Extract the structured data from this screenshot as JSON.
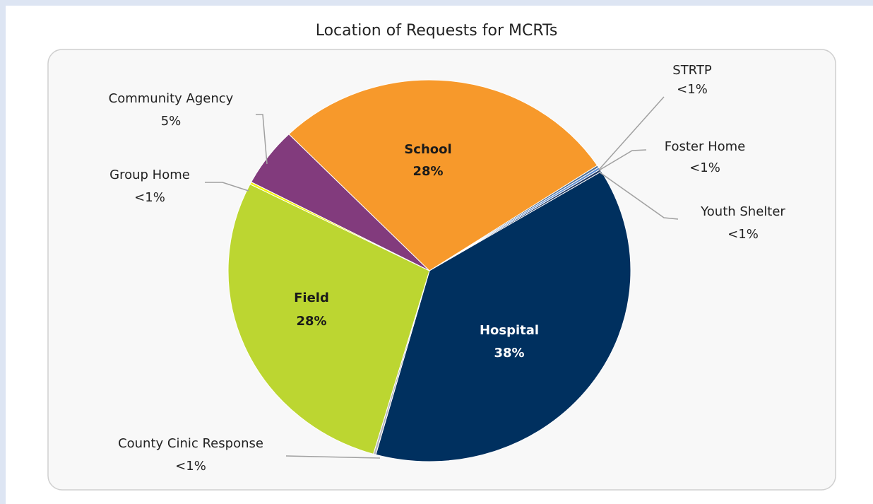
{
  "chart_data": {
    "type": "pie",
    "title": "Location of Requests for MCRTs",
    "categories": [
      "STRTP",
      "Foster Home",
      "Youth Shelter",
      "Hospital",
      "County Cinic Response",
      "Field",
      "Group Home",
      "Community Agency",
      "School"
    ],
    "values": [
      0.2,
      0.2,
      0.2,
      38,
      0.2,
      28,
      0.2,
      5,
      28
    ],
    "value_labels": [
      "<1%",
      "<1%",
      "<1%",
      "38%",
      "<1%",
      "28%",
      "<1%",
      "5%",
      "28%"
    ],
    "colors": [
      "#4f6f96",
      "#5b8bd0",
      "#1f3864",
      "#00305f",
      "#b4b4bc",
      "#bcd631",
      "#f4f400",
      "#823b7d",
      "#f7992b"
    ]
  }
}
